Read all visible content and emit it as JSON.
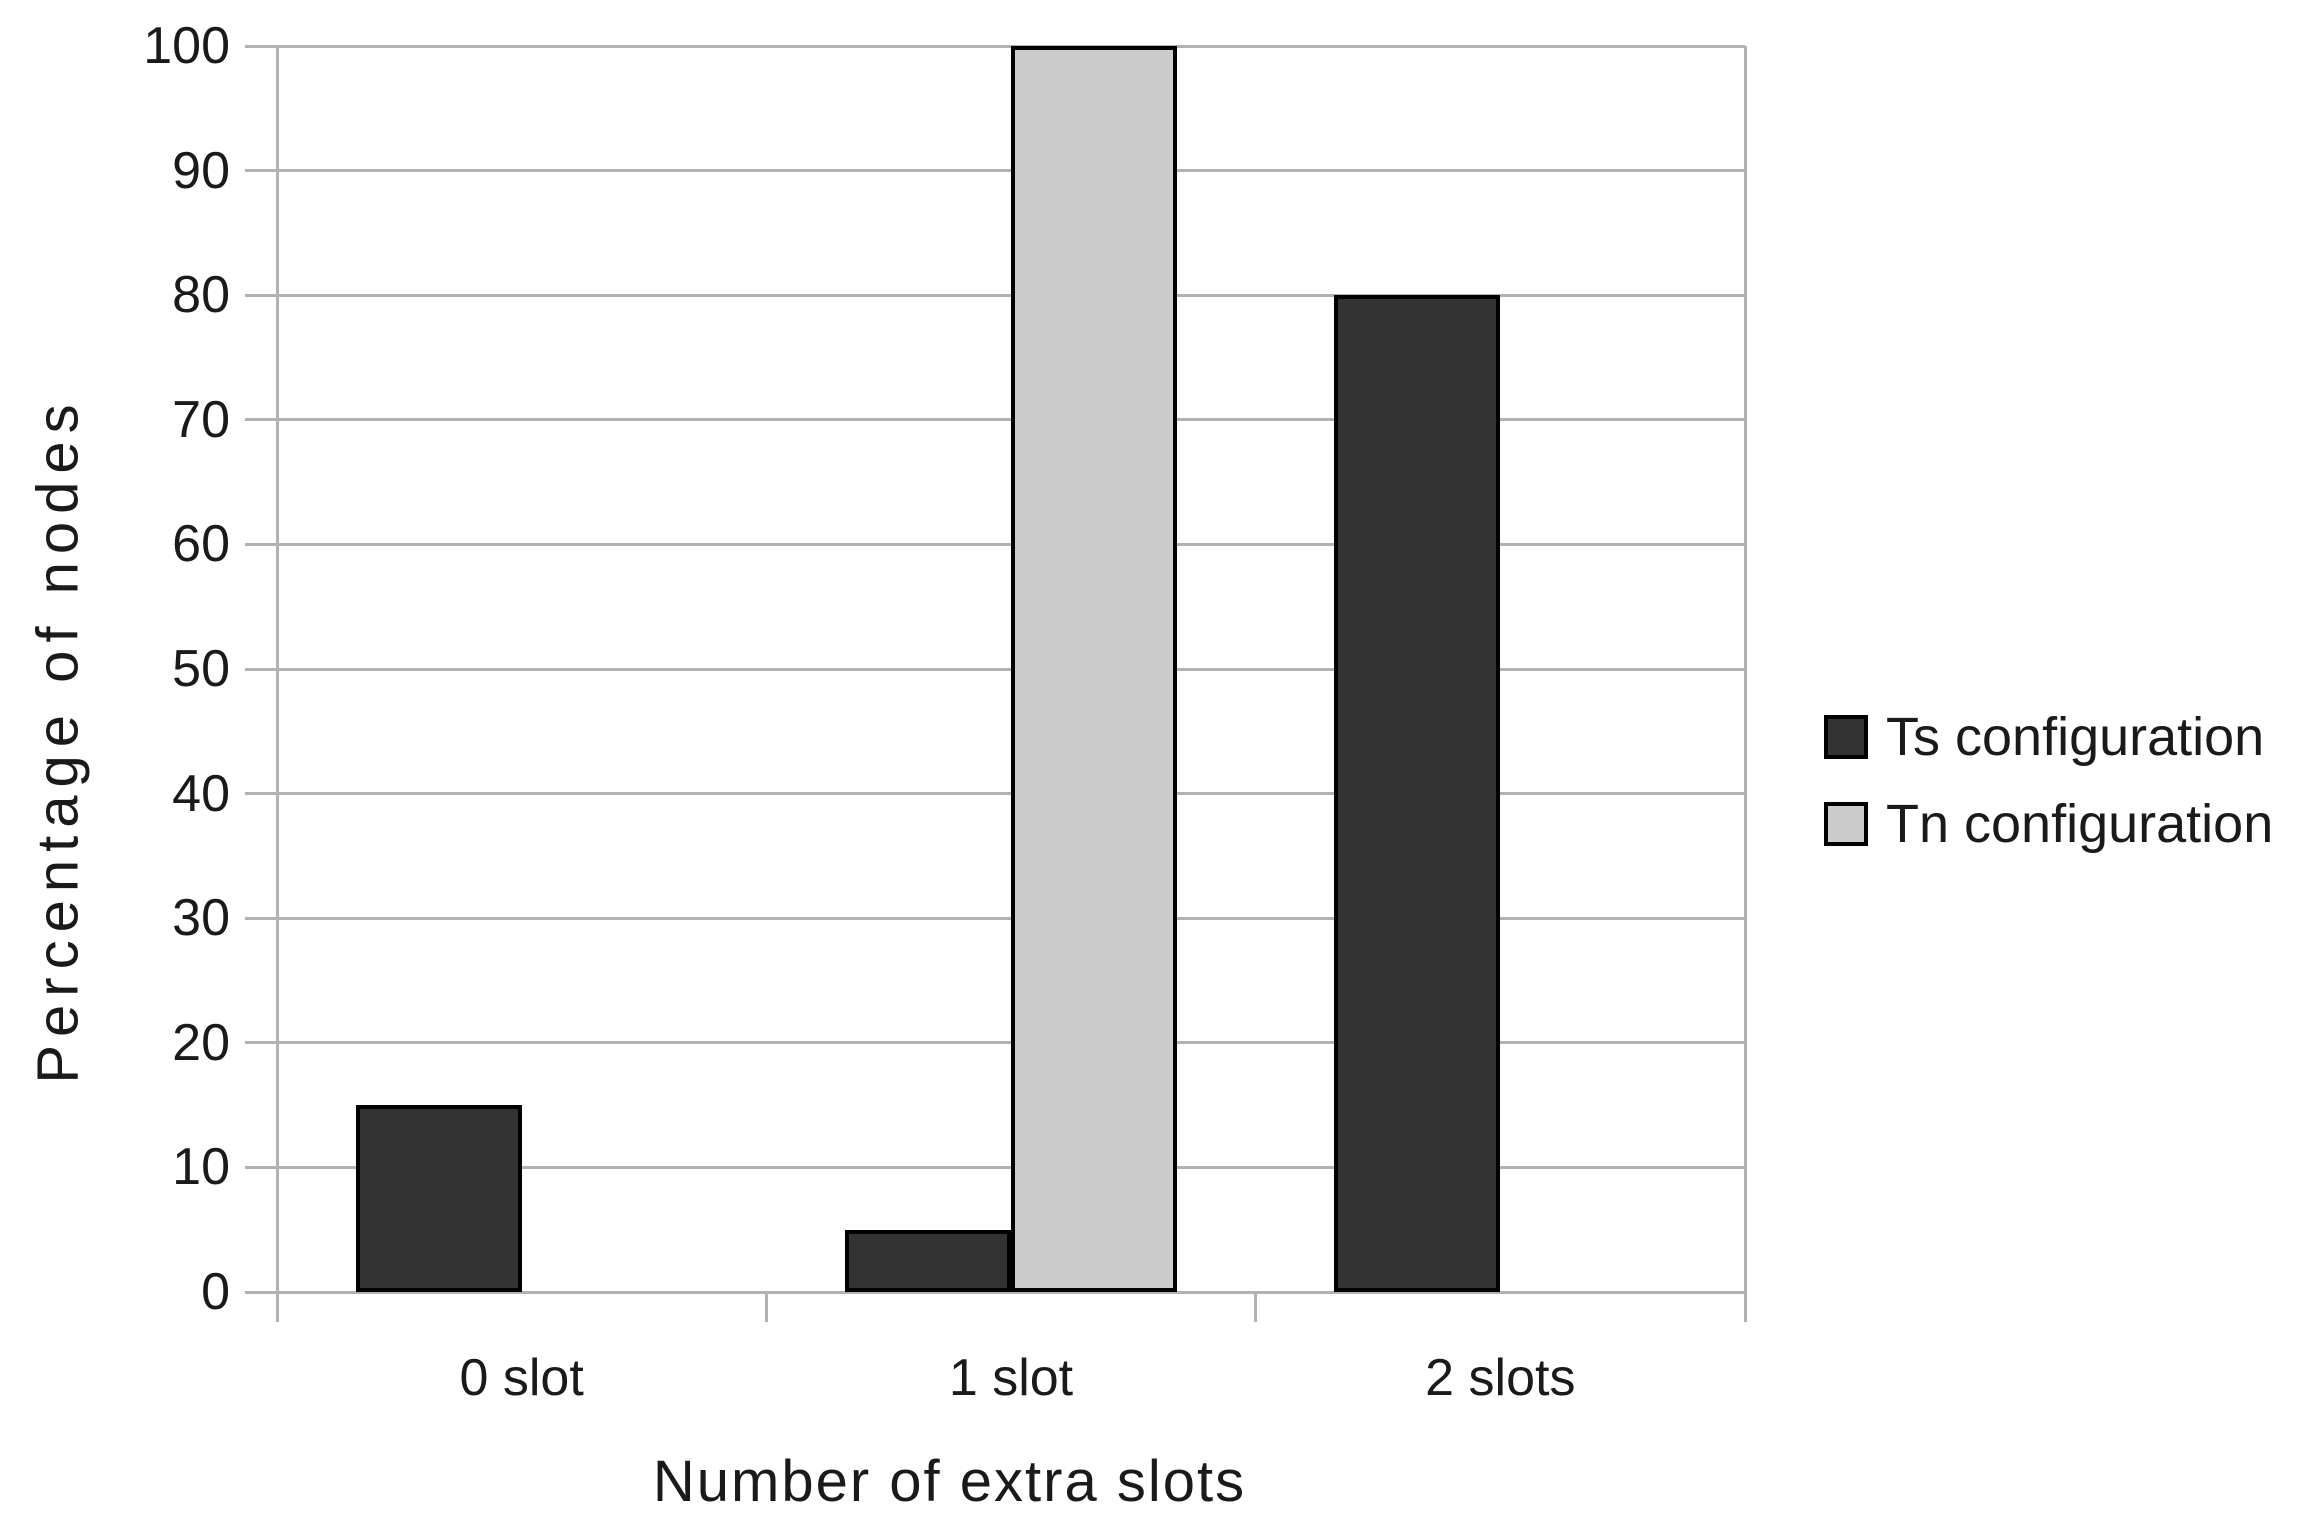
{
  "chart_data": {
    "type": "bar",
    "categories": [
      "0 slot",
      "1 slot",
      "2 slots"
    ],
    "series": [
      {
        "name": "Ts configuration",
        "color": "#333333",
        "values": [
          15,
          5,
          80
        ]
      },
      {
        "name": "Tn configuration",
        "color": "#cccccc",
        "values": [
          0,
          100,
          0
        ]
      }
    ],
    "xlabel": "Number of extra slots",
    "ylabel": "Percentage of nodes",
    "ylim": [
      0,
      100
    ],
    "yticks": [
      0,
      10,
      20,
      30,
      40,
      50,
      60,
      70,
      80,
      90,
      100
    ],
    "grid": "horizontal",
    "legend_position": "right",
    "gridline_color": "#b2b2b2",
    "bar_border_color": "#000000",
    "text_color": "#1a1a1a"
  }
}
